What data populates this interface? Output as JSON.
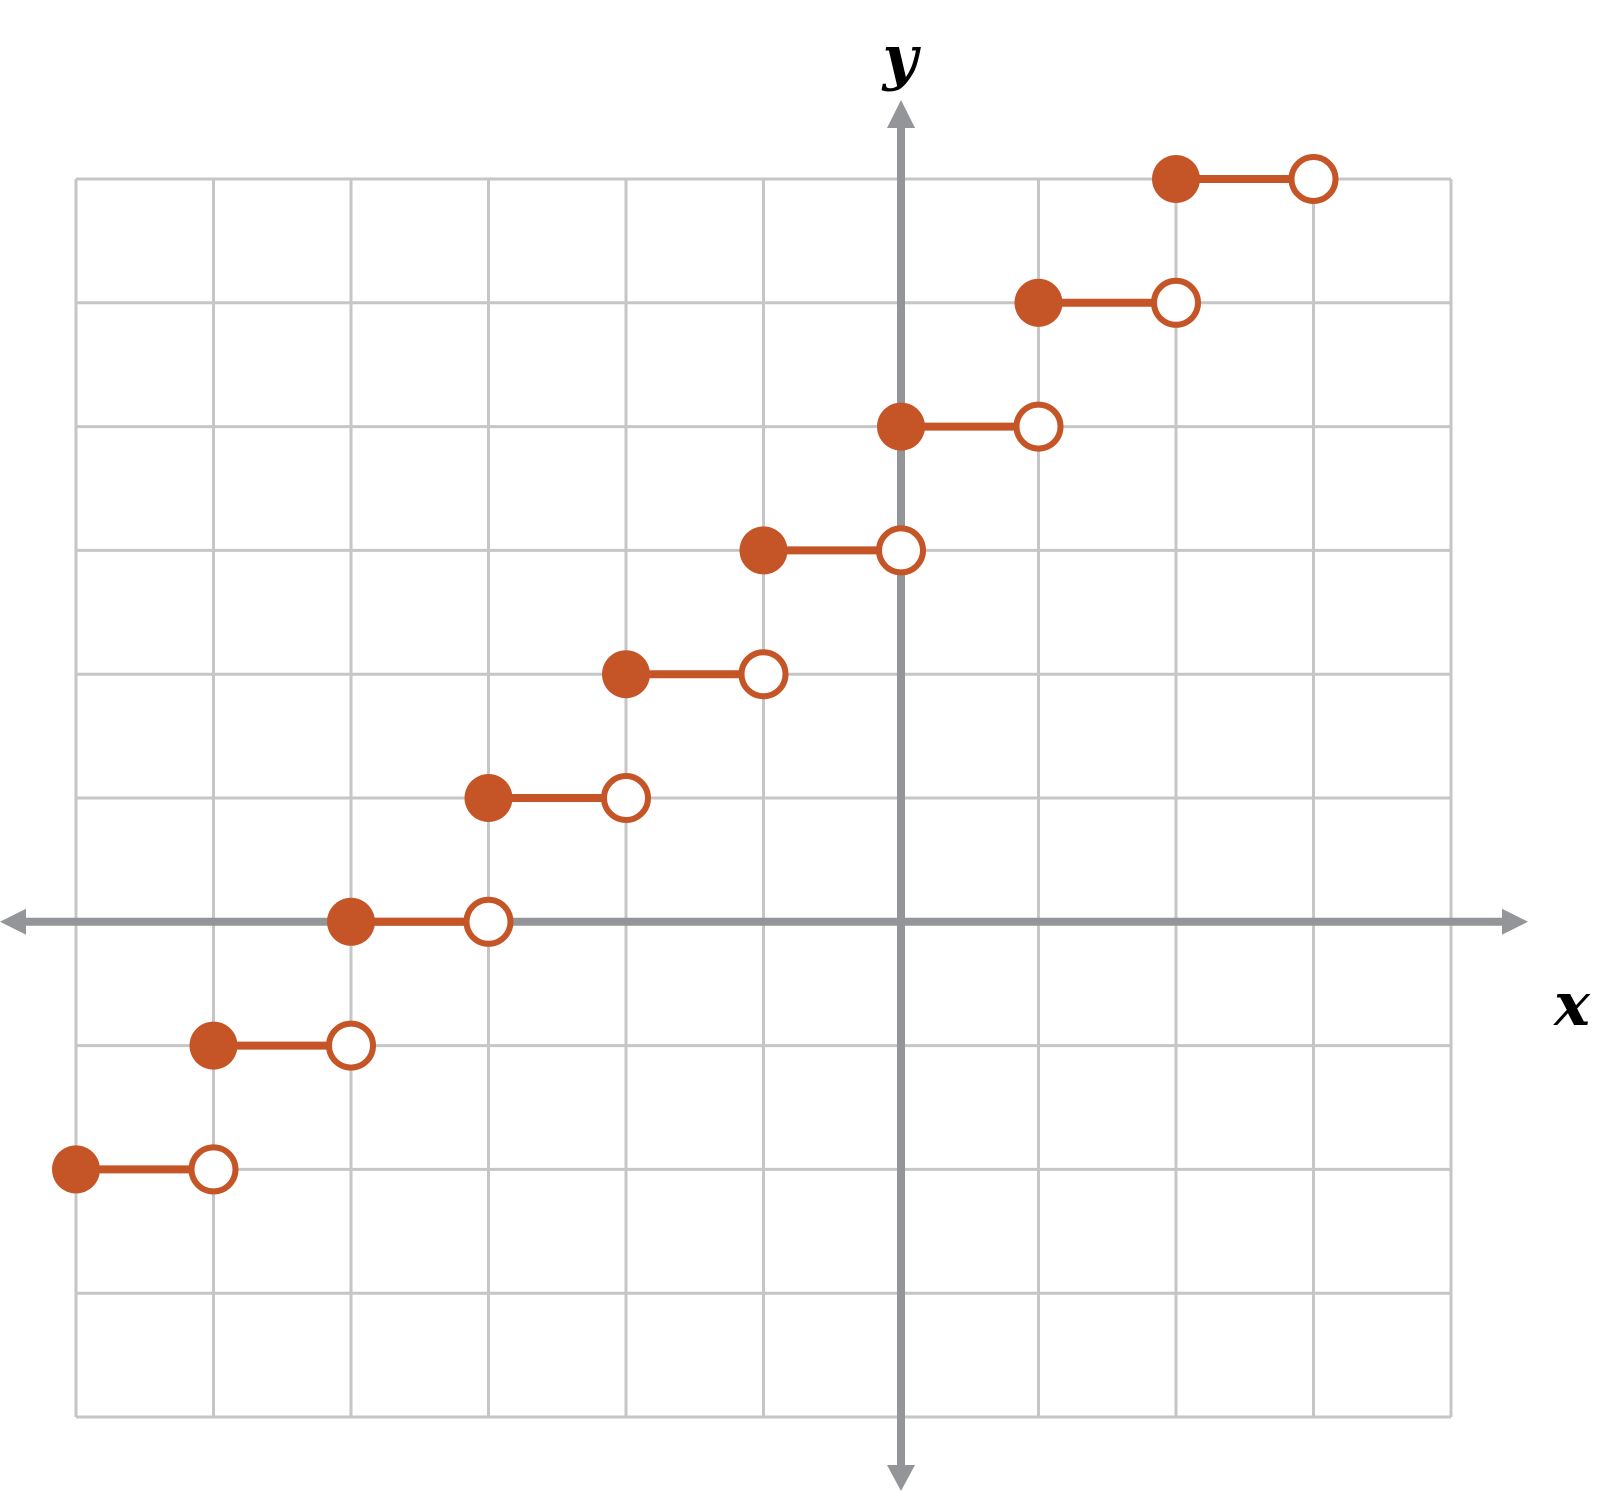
{
  "chart_data": {
    "type": "line",
    "plot_kind": "step-function",
    "xlabel": "x",
    "ylabel": "y",
    "xlim": [
      -6,
      4
    ],
    "ylim": [
      -3,
      6
    ],
    "grid": true,
    "tick_labels": false,
    "series": [
      {
        "segments": [
          {
            "x_start": -6,
            "x_end": -5,
            "y": -2
          },
          {
            "x_start": -5,
            "x_end": -4,
            "y": -1
          },
          {
            "x_start": -4,
            "x_end": -3,
            "y": 0
          },
          {
            "x_start": -3,
            "x_end": -2,
            "y": 1
          },
          {
            "x_start": -2,
            "x_end": -1,
            "y": 2
          },
          {
            "x_start": -1,
            "x_end": 0,
            "y": 3
          },
          {
            "x_start": 0,
            "x_end": 1,
            "y": 4
          },
          {
            "x_start": 1,
            "x_end": 2,
            "y": 5
          },
          {
            "x_start": 2,
            "x_end": 3,
            "y": 6
          }
        ],
        "closed_endpoint": "left",
        "open_endpoint": "right"
      }
    ]
  },
  "colors": {
    "grid": "#c6c6c6",
    "axis": "#939598",
    "step": "#c55527",
    "open_fill": "#ffffff"
  }
}
